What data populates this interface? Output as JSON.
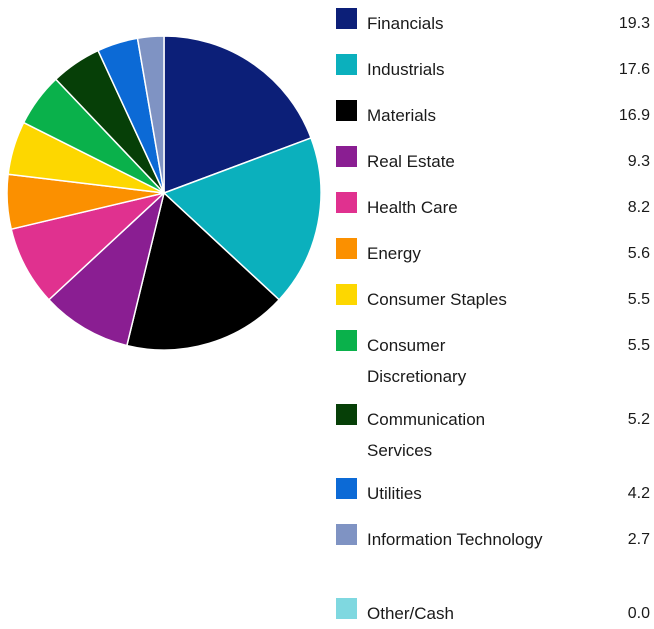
{
  "chart_data": {
    "type": "pie",
    "legend_position": "right",
    "slices": [
      {
        "label": "Financials",
        "value": 19.3,
        "display": "19.3",
        "color": "#0c1f78"
      },
      {
        "label": "Industrials",
        "value": 17.6,
        "display": "17.6",
        "color": "#0bb0bd"
      },
      {
        "label": "Materials",
        "value": 16.9,
        "display": "16.9",
        "color": "#000000"
      },
      {
        "label": "Real Estate",
        "value": 9.3,
        "display": "9.3",
        "color": "#8a1e92"
      },
      {
        "label": "Health Care",
        "value": 8.2,
        "display": "8.2",
        "color": "#e0318f"
      },
      {
        "label": "Energy",
        "value": 5.6,
        "display": "5.6",
        "color": "#fb9000"
      },
      {
        "label": "Consumer Staples",
        "value": 5.5,
        "display": "5.5",
        "color": "#fdd700"
      },
      {
        "label": "Consumer Discretionary",
        "value": 5.5,
        "display": "5.5",
        "color": "#0ab14b"
      },
      {
        "label": "Communication Services",
        "value": 5.2,
        "display": "5.2",
        "color": "#063f07"
      },
      {
        "label": "Utilities",
        "value": 4.2,
        "display": "4.2",
        "color": "#0c6ad6"
      },
      {
        "label": "Information Technology",
        "value": 2.7,
        "display": "2.7",
        "color": "#7f93c3"
      },
      {
        "label": "Other/Cash",
        "value": 0.0,
        "display": "0.0",
        "color": "#7fd8e0"
      }
    ]
  }
}
